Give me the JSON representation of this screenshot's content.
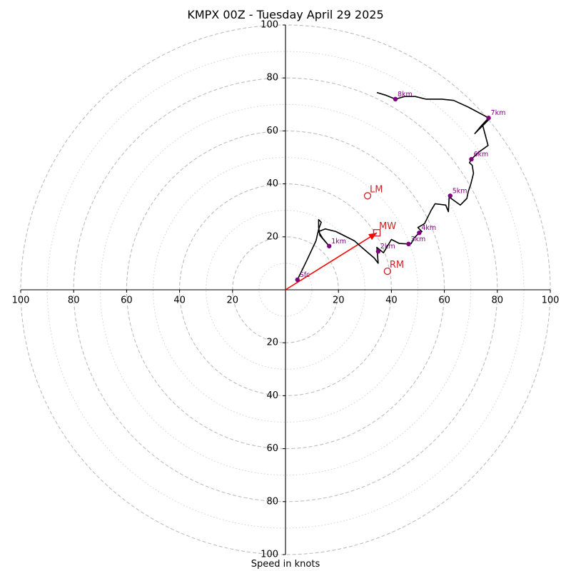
{
  "chart_data": {
    "type": "hodograph",
    "title": "KMPX 00Z - Tuesday April 29 2025",
    "xlabel": "Speed in knots",
    "axis_range": [
      -100,
      100
    ],
    "ring_major_step": 20,
    "ring_minor_step": 10,
    "tick_labels": {
      "left": [
        "100",
        "80",
        "60",
        "40",
        "20"
      ],
      "right": [
        "20",
        "40",
        "60",
        "80",
        "100"
      ],
      "top": [
        "20",
        "40",
        "60",
        "80",
        "100"
      ],
      "bottom": [
        "20",
        "40",
        "60",
        "80",
        "100"
      ]
    },
    "trace": {
      "color": "#000000",
      "points": [
        [
          4.5,
          3.8
        ],
        [
          8,
          11
        ],
        [
          11.5,
          18.5
        ],
        [
          12.5,
          22.8
        ],
        [
          13.5,
          25.5
        ],
        [
          12.5,
          26.5
        ],
        [
          12.5,
          23.5
        ],
        [
          13,
          20.5
        ],
        [
          16.5,
          16.5
        ],
        [
          14,
          19.5
        ],
        [
          12.5,
          22
        ],
        [
          15,
          23
        ],
        [
          19,
          22
        ],
        [
          22,
          20.5
        ],
        [
          26,
          18.5
        ],
        [
          30,
          15
        ],
        [
          33.5,
          12
        ],
        [
          35,
          10
        ],
        [
          34.5,
          16
        ],
        [
          37,
          14
        ],
        [
          40,
          19
        ],
        [
          43,
          17.5
        ],
        [
          46.5,
          17.3
        ],
        [
          47.5,
          17.5
        ],
        [
          48.5,
          19.5
        ],
        [
          50,
          21
        ],
        [
          51.5,
          22
        ],
        [
          50,
          23.5
        ],
        [
          52.5,
          25
        ],
        [
          55,
          30
        ],
        [
          56.5,
          32.5
        ],
        [
          60.5,
          32
        ],
        [
          61.5,
          29.5
        ],
        [
          61.8,
          35
        ],
        [
          66,
          32
        ],
        [
          68.5,
          34.5
        ],
        [
          69,
          37
        ],
        [
          70,
          40
        ],
        [
          71,
          44
        ],
        [
          70.5,
          47
        ],
        [
          69.5,
          48
        ],
        [
          70.2,
          49.3
        ],
        [
          73,
          52
        ],
        [
          76.5,
          54.5
        ],
        [
          74.5,
          62
        ],
        [
          77,
          64.5
        ],
        [
          71.5,
          59
        ],
        [
          74,
          62
        ],
        [
          76.7,
          64.9
        ],
        [
          69,
          69
        ],
        [
          63.5,
          71.5
        ],
        [
          59,
          72
        ],
        [
          53,
          72
        ],
        [
          49,
          73
        ],
        [
          45,
          73
        ],
        [
          41.5,
          72
        ],
        [
          37.8,
          73.5
        ],
        [
          34.5,
          74.5
        ]
      ]
    },
    "height_markers": [
      {
        "label": "Sfc",
        "u": 4.5,
        "v": 3.8
      },
      {
        "label": "1km",
        "u": 16.5,
        "v": 16.5
      },
      {
        "label": "2km",
        "u": 35,
        "v": 14.5
      },
      {
        "label": "3km",
        "u": 46.5,
        "v": 17.3
      },
      {
        "label": "4km",
        "u": 50.5,
        "v": 21.5
      },
      {
        "label": "5km",
        "u": 62.2,
        "v": 35.5
      },
      {
        "label": "6km",
        "u": 70.2,
        "v": 49.3
      },
      {
        "label": "7km",
        "u": 76.7,
        "v": 64.9
      },
      {
        "label": "8km",
        "u": 41.5,
        "v": 72
      }
    ],
    "marker_color": "#800080",
    "storm_motion": [
      {
        "label": "LM",
        "u": 31,
        "v": 35.5,
        "shape": "circle"
      },
      {
        "label": "MW",
        "u": 34.5,
        "v": 21.5,
        "shape": "square"
      },
      {
        "label": "RM",
        "u": 38.5,
        "v": 7,
        "shape": "circle"
      }
    ],
    "storm_color": "#cc2222",
    "shear_vector": {
      "u": 34.5,
      "v": 21.5,
      "color": "#ff0000"
    }
  }
}
